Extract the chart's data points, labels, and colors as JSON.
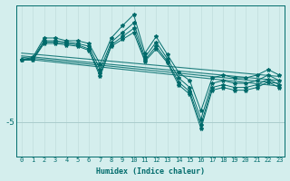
{
  "xlabel": "Humidex (Indice chaleur)",
  "background_color": "#d4eeed",
  "line_color": "#006b6b",
  "grid_color_v": "#c0dedd",
  "grid_color_h": "#aacccc",
  "xlim": [
    -0.5,
    23.5
  ],
  "ylim": [
    -7.5,
    3.5
  ],
  "yticks": [
    -5
  ],
  "xticks": [
    0,
    1,
    2,
    3,
    4,
    5,
    6,
    7,
    8,
    9,
    10,
    11,
    12,
    13,
    14,
    15,
    16,
    17,
    18,
    19,
    20,
    21,
    22,
    23
  ],
  "series": [
    [
      -0.5,
      -0.4,
      0.9,
      0.9,
      0.8,
      0.7,
      0.5,
      -1.2,
      0.8,
      1.5,
      2.2,
      -0.3,
      0.8,
      -0.4,
      -1.8,
      -2.5,
      -4.8,
      -2.2,
      -2.0,
      -2.2,
      -2.2,
      -2.0,
      -1.6,
      -2.0
    ],
    [
      -0.5,
      -0.3,
      1.1,
      1.1,
      0.9,
      0.9,
      0.7,
      -0.8,
      1.1,
      2.0,
      2.8,
      0.0,
      1.2,
      -0.1,
      -1.4,
      -2.0,
      -4.2,
      -1.8,
      -1.6,
      -1.8,
      -1.8,
      -1.6,
      -1.2,
      -1.6
    ],
    [
      -0.5,
      -0.5,
      0.8,
      0.8,
      0.7,
      0.6,
      0.3,
      -1.5,
      0.6,
      1.2,
      1.8,
      -0.5,
      0.5,
      -0.6,
      -2.1,
      -2.8,
      -5.2,
      -2.5,
      -2.3,
      -2.5,
      -2.5,
      -2.3,
      -1.9,
      -2.3
    ],
    [
      -0.5,
      -0.5,
      0.7,
      0.7,
      0.6,
      0.5,
      0.2,
      -1.7,
      0.5,
      1.0,
      1.5,
      -0.6,
      0.3,
      -0.7,
      -2.3,
      -3.0,
      -5.5,
      -2.7,
      -2.5,
      -2.7,
      -2.7,
      -2.5,
      -2.1,
      -2.5
    ]
  ],
  "regression_lines": [
    {
      "x0": 0,
      "y0": -0.2,
      "x1": 23,
      "y1": -2.0
    },
    {
      "x0": 0,
      "y0": 0.0,
      "x1": 23,
      "y1": -1.7
    },
    {
      "x0": 0,
      "y0": -0.3,
      "x1": 23,
      "y1": -2.2
    },
    {
      "x0": 0,
      "y0": -0.4,
      "x1": 23,
      "y1": -2.4
    }
  ]
}
